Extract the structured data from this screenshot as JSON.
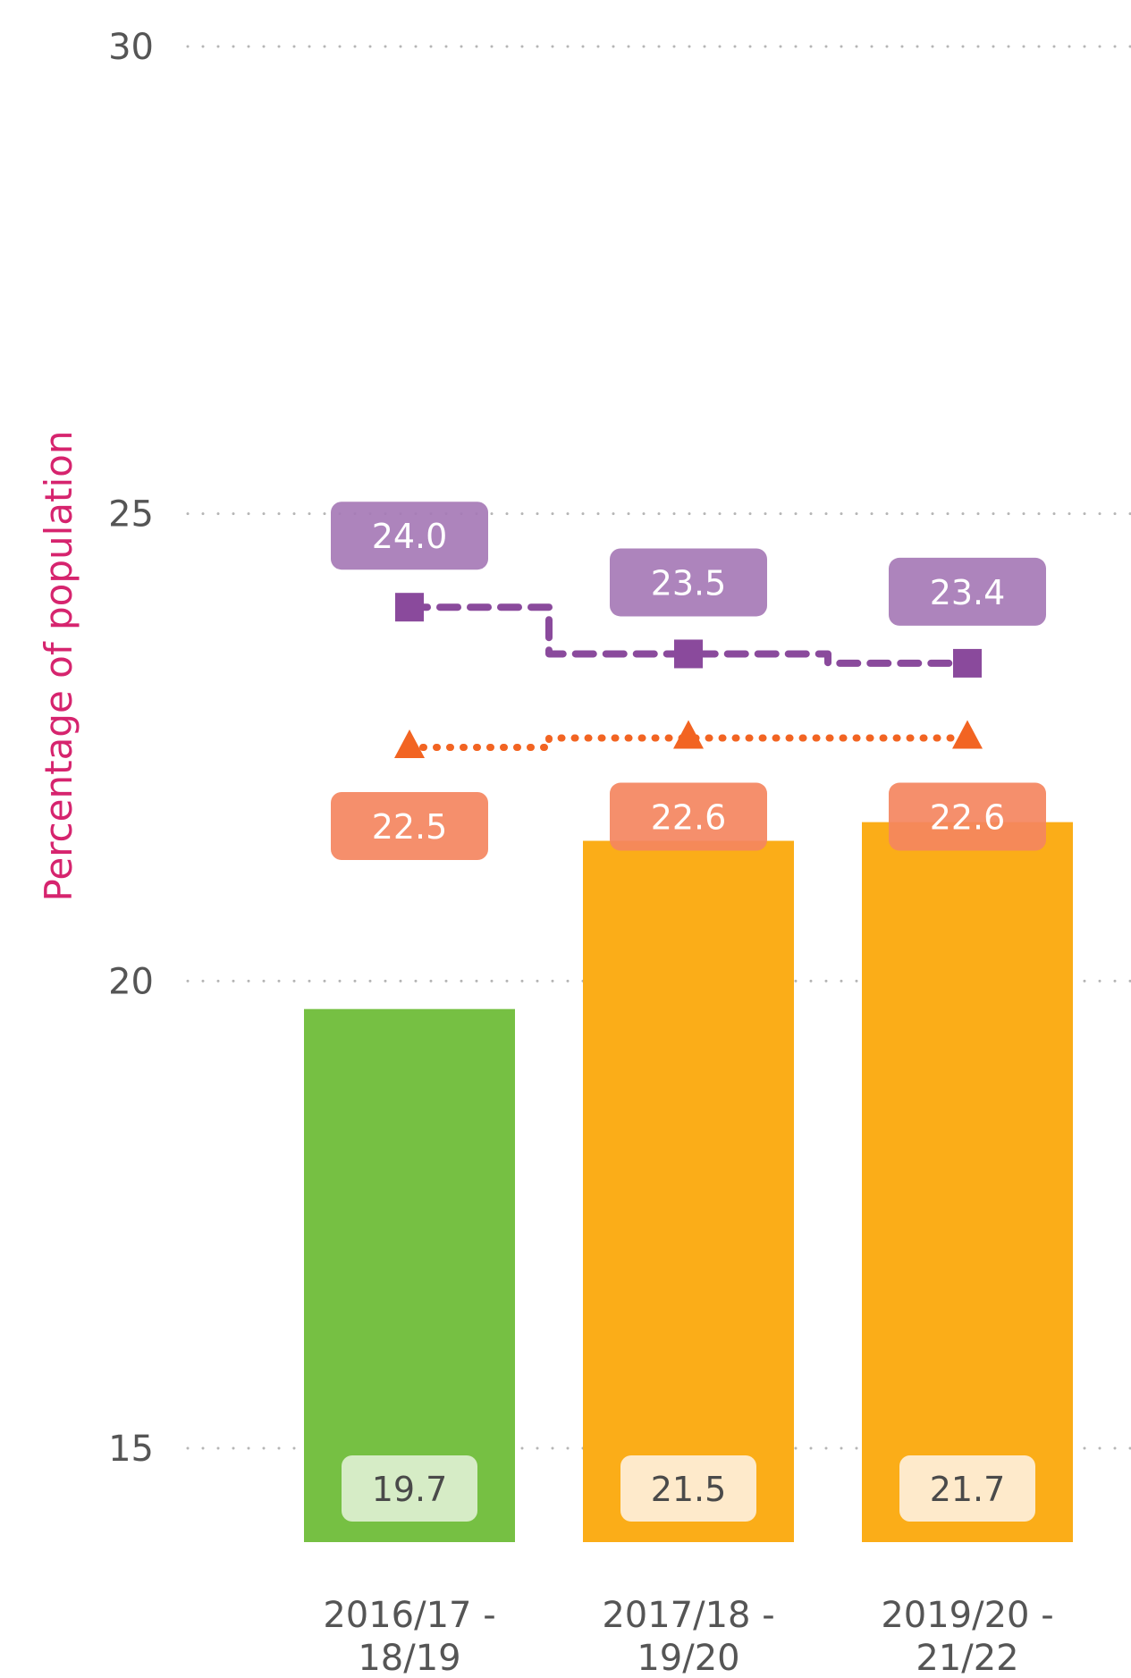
{
  "chart_data": {
    "type": "bar",
    "ylabel": "Percentage of population",
    "ylim": [
      15,
      30
    ],
    "yticks": [
      15,
      20,
      25,
      30
    ],
    "grid": true,
    "categories": [
      [
        "2016/17 -",
        "18/19"
      ],
      [
        "2017/18 -",
        "19/20"
      ],
      [
        "2019/20 -",
        "21/22"
      ]
    ],
    "bars": {
      "values": [
        19.7,
        21.5,
        21.7
      ],
      "labels": [
        "19.7",
        "21.5",
        "21.7"
      ],
      "colors": [
        "#76c043",
        "#fbad18",
        "#fbad18"
      ],
      "label_box_colors": [
        "#d6ecc6",
        "#feeacb",
        "#feeacb"
      ]
    },
    "series": [
      {
        "values": [
          24.0,
          23.5,
          23.4
        ],
        "labels": [
          "24.0",
          "23.5",
          "23.4"
        ],
        "color": "#8a4a9c",
        "label_box_color": "#a679b6",
        "marker": "square",
        "line_style": "dashed"
      },
      {
        "values": [
          22.5,
          22.6,
          22.6
        ],
        "labels": [
          "22.5",
          "22.6",
          "22.6"
        ],
        "color": "#f26422",
        "label_box_color": "#f48660",
        "marker": "triangle",
        "line_style": "dotted"
      }
    ]
  }
}
